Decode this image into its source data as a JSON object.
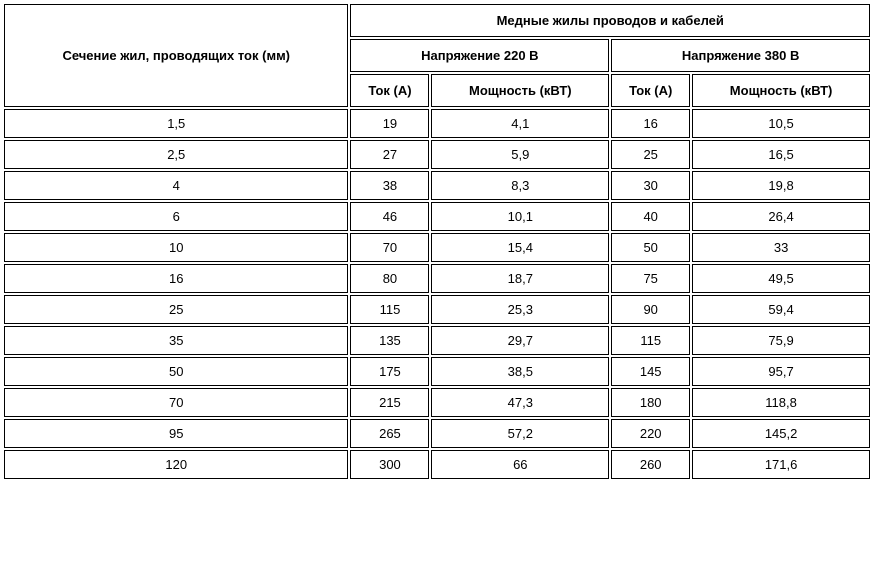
{
  "table": {
    "type": "table",
    "header": {
      "section_label": "Сечение жил, проводящих ток (мм)",
      "top_group": "Медные жилы проводов и кабелей",
      "voltage_220": "Напряжение 220 В",
      "voltage_380": "Напряжение 380 В",
      "current_label": "Ток (А)",
      "power_label": "Мощность (кВТ)"
    },
    "rows": [
      {
        "section": "1,5",
        "i220": "19",
        "p220": "4,1",
        "i380": "16",
        "p380": "10,5"
      },
      {
        "section": "2,5",
        "i220": "27",
        "p220": "5,9",
        "i380": "25",
        "p380": "16,5"
      },
      {
        "section": "4",
        "i220": "38",
        "p220": "8,3",
        "i380": "30",
        "p380": "19,8"
      },
      {
        "section": "6",
        "i220": "46",
        "p220": "10,1",
        "i380": "40",
        "p380": "26,4"
      },
      {
        "section": "10",
        "i220": "70",
        "p220": "15,4",
        "i380": "50",
        "p380": "33"
      },
      {
        "section": "16",
        "i220": "80",
        "p220": "18,7",
        "i380": "75",
        "p380": "49,5"
      },
      {
        "section": "25",
        "i220": "115",
        "p220": "25,3",
        "i380": "90",
        "p380": "59,4"
      },
      {
        "section": "35",
        "i220": "135",
        "p220": "29,7",
        "i380": "115",
        "p380": "75,9"
      },
      {
        "section": "50",
        "i220": "175",
        "p220": "38,5",
        "i380": "145",
        "p380": "95,7"
      },
      {
        "section": "70",
        "i220": "215",
        "p220": "47,3",
        "i380": "180",
        "p380": "118,8"
      },
      {
        "section": "95",
        "i220": "265",
        "p220": "57,2",
        "i380": "220",
        "p380": "145,2"
      },
      {
        "section": "120",
        "i220": "300",
        "p220": "66",
        "i380": "260",
        "p380": "171,6"
      }
    ],
    "styling": {
      "border_color": "#000000",
      "background_color": "#ffffff",
      "font_family": "Arial",
      "header_fontsize": 13,
      "body_fontsize": 13,
      "header_fontweight": "bold",
      "column_widths": {
        "section": 350,
        "current": 80,
        "power": 180
      },
      "cell_spacing": 2,
      "text_align": "center"
    }
  }
}
